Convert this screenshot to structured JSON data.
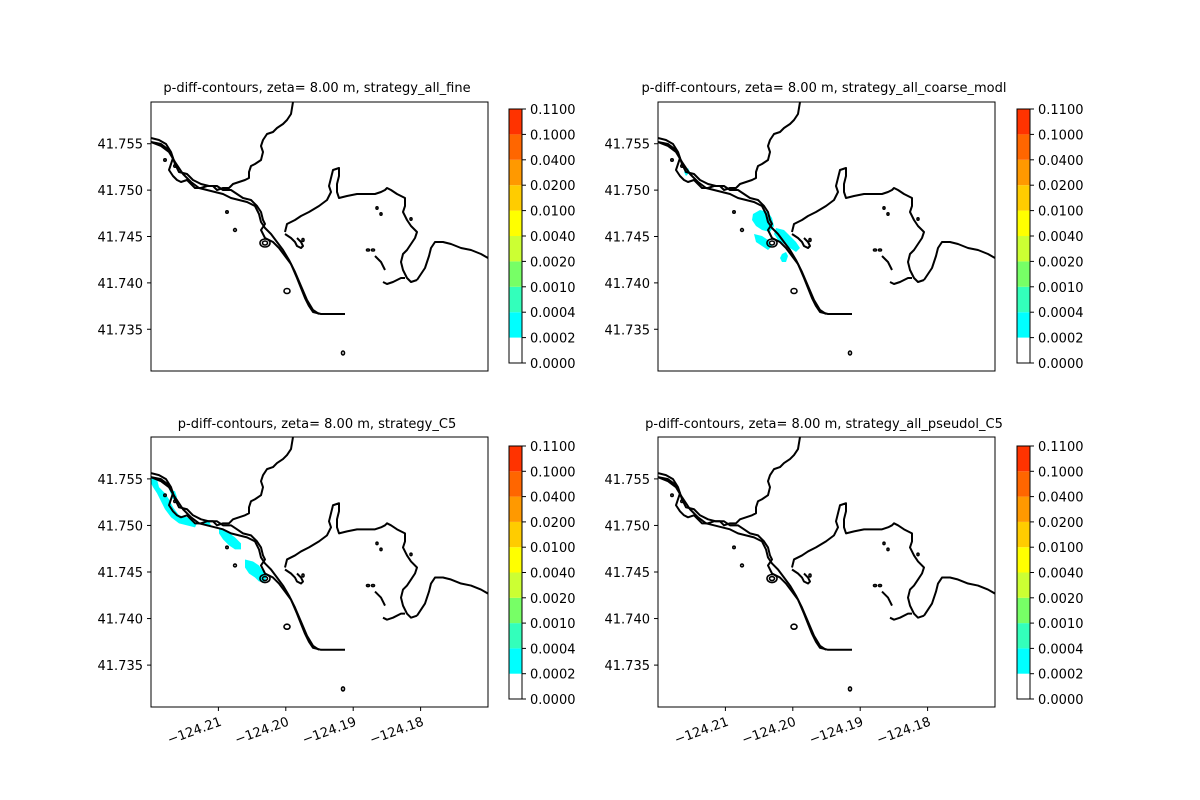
{
  "figure": {
    "background": "#ffffff"
  },
  "colorbar": {
    "levels": [
      "0.0000",
      "0.0002",
      "0.0004",
      "0.0010",
      "0.0020",
      "0.0040",
      "0.0100",
      "0.0200",
      "0.0400",
      "0.1000",
      "0.1100"
    ],
    "colors": [
      "#ffffff",
      "#00ffff",
      "#33ffbb",
      "#77ff66",
      "#ccff33",
      "#ffff00",
      "#ffcc00",
      "#ff9900",
      "#ff6600",
      "#ff3300",
      "#ff0000"
    ]
  },
  "chart_data": [
    {
      "type": "contour-map",
      "title": "p-diff-contours, zeta= 8.00 m, strategy_all_fine",
      "yticks": [
        41.755,
        41.75,
        41.745,
        41.74,
        41.735
      ],
      "ytick_labels": [
        "41.755",
        "41.750",
        "41.745",
        "41.740",
        "41.735"
      ],
      "xticks": [],
      "xtick_labels": [],
      "xlim": [
        -124.22,
        -124.17
      ],
      "ylim": [
        41.7305,
        41.7595
      ],
      "filled_regions": []
    },
    {
      "type": "contour-map",
      "title": "p-diff-contours, zeta= 8.00 m, strategy_all_coarse_modl",
      "yticks": [
        41.755,
        41.75,
        41.745,
        41.74,
        41.735
      ],
      "ytick_labels": [
        "41.755",
        "41.750",
        "41.745",
        "41.740",
        "41.735"
      ],
      "xticks": [],
      "xtick_labels": [],
      "xlim": [
        -124.22,
        -124.17
      ],
      "ylim": [
        41.7305,
        41.7595
      ],
      "filled_regions": [
        "0.0002-0.0004"
      ]
    },
    {
      "type": "contour-map",
      "title": "p-diff-contours, zeta= 8.00 m, strategy_C5",
      "yticks": [
        41.755,
        41.75,
        41.745,
        41.74,
        41.735
      ],
      "ytick_labels": [
        "41.755",
        "41.750",
        "41.745",
        "41.740",
        "41.735"
      ],
      "xticks": [
        -124.21,
        -124.2,
        -124.19,
        -124.18
      ],
      "xtick_labels": [
        "−124.21",
        "−124.20",
        "−124.19",
        "−124.18"
      ],
      "xlim": [
        -124.22,
        -124.17
      ],
      "ylim": [
        41.7305,
        41.7595
      ],
      "filled_regions": [
        "0.0002-0.0004"
      ]
    },
    {
      "type": "contour-map",
      "title": "p-diff-contours, zeta= 8.00 m, strategy_all_pseudol_C5",
      "yticks": [
        41.755,
        41.75,
        41.745,
        41.74,
        41.735
      ],
      "ytick_labels": [
        "41.755",
        "41.750",
        "41.745",
        "41.740",
        "41.735"
      ],
      "xticks": [
        -124.21,
        -124.2,
        -124.19,
        -124.18
      ],
      "xtick_labels": [
        "−124.21",
        "−124.20",
        "−124.19",
        "−124.18"
      ],
      "xlim": [
        -124.22,
        -124.17
      ],
      "ylim": [
        41.7305,
        41.7595
      ],
      "filled_regions": []
    }
  ]
}
